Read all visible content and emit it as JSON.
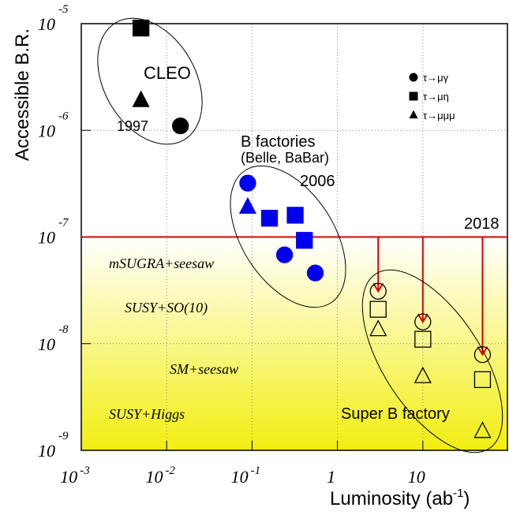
{
  "chart_data": {
    "type": "scatter",
    "x_label": "Luminosity (ab",
    "x_label_exponent": "-1",
    "x_label_end": ")",
    "y_label": "Accessible B.R.",
    "log_x": true,
    "log_y": true,
    "grid": true,
    "xlim": [
      0.001,
      100
    ],
    "ylim": [
      1e-09,
      1e-05
    ],
    "xticks": [
      {
        "value": 0.001,
        "label": "10",
        "exponent": "-3"
      },
      {
        "value": 0.01,
        "label": "10",
        "exponent": "-2"
      },
      {
        "value": 0.1,
        "label": "10",
        "exponent": "-1"
      },
      1,
      10
    ],
    "yticks": [
      {
        "value": 1e-05,
        "label": "10",
        "exponent": "-5"
      },
      {
        "value": 1e-06,
        "label": "10",
        "exponent": "-6"
      },
      {
        "value": 1e-07,
        "label": "10",
        "exponent": "-7"
      },
      {
        "value": 1e-08,
        "label": "10",
        "exponent": "-8"
      },
      {
        "value": 1e-09,
        "label": "10",
        "exponent": "-9"
      }
    ],
    "reference_line": {
      "value": 1e-07,
      "color": "#e00000"
    },
    "legend_position": "upper right",
    "series": [
      {
        "name": "τ→μγ",
        "marker": "circle",
        "x": [
          0.0145,
          0.089,
          0.24,
          0.55,
          3,
          10,
          50
        ],
        "values": [
          1.1e-06,
          3.2e-07,
          6.8e-08,
          4.6e-08,
          3.1e-08,
          1.6e-08,
          7.9e-09
        ],
        "colors": [
          "#000000",
          "#0000ee",
          "#0000ee",
          "#0000ee",
          "#000000",
          "#000000",
          "#000000"
        ],
        "filled": [
          true,
          true,
          true,
          true,
          false,
          false,
          false
        ]
      },
      {
        "name": "τ→μη",
        "marker": "square",
        "x": [
          0.005,
          0.16,
          0.32,
          0.41,
          3,
          10,
          50
        ],
        "values": [
          9.1e-06,
          1.5e-07,
          1.6e-07,
          9.3e-08,
          2.1e-08,
          1.1e-08,
          4.6e-09
        ],
        "colors": [
          "#000000",
          "#0000ee",
          "#0000ee",
          "#0000ee",
          "#000000",
          "#000000",
          "#000000"
        ],
        "filled": [
          true,
          true,
          true,
          true,
          false,
          false,
          false
        ]
      },
      {
        "name": "τ→μμμ",
        "marker": "triangle",
        "x": [
          0.005,
          0.089,
          3,
          10,
          50
        ],
        "values": [
          1.9e-06,
          1.9e-07,
          1.35e-08,
          4.9e-09,
          1.5e-09
        ],
        "colors": [
          "#000000",
          "#0000ee",
          "#000000",
          "#000000",
          "#000000"
        ],
        "filled": [
          true,
          true,
          false,
          false,
          false
        ]
      }
    ],
    "annotations": [
      "CLEO",
      "1997",
      "B factories",
      "(Belle, BaBar)",
      "2006",
      "2018",
      "Super B factory",
      "mSUGRA+seesaw",
      "SUSY+SO(10)",
      "SM+seesaw",
      "SUSY+Higgs"
    ]
  }
}
